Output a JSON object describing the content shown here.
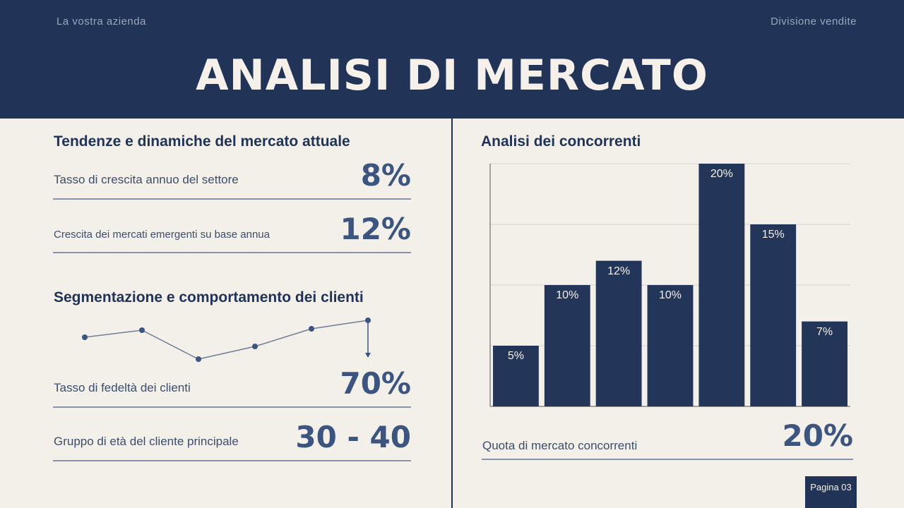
{
  "header": {
    "company": "La vostra azienda",
    "division": "Divisione vendite",
    "title": "ANALISI DI MERCATO"
  },
  "left": {
    "section1": {
      "heading": "Tendenze e dinamiche del mercato attuale",
      "stats": [
        {
          "label": "Tasso di crescita annuo del settore",
          "value": "8%"
        },
        {
          "label": "Crescita dei mercati emergenti su base annua",
          "value": "12%"
        }
      ]
    },
    "section2": {
      "heading": "Segmentazione e comportamento dei clienti",
      "stats": [
        {
          "label": "Tasso di fedeltà dei clienti",
          "value": "70%"
        },
        {
          "label": "Gruppo di età del cliente principale",
          "value": "30 - 40"
        }
      ]
    }
  },
  "chart_data": {
    "type": "bar",
    "title": "Analisi dei concorrenti",
    "values": [
      5,
      10,
      12,
      10,
      20,
      15,
      7
    ],
    "value_labels": [
      "5%",
      "10%",
      "12%",
      "10%",
      "20%",
      "15%",
      "7%"
    ],
    "color": "#233659",
    "ylim": [
      0,
      20
    ],
    "yticks": [
      0,
      5,
      10,
      15,
      20
    ],
    "grid": true
  },
  "right_stat": {
    "label": "Quota di mercato concorrenti",
    "value": "20%"
  },
  "footer": {
    "page": "Pagina 03"
  }
}
